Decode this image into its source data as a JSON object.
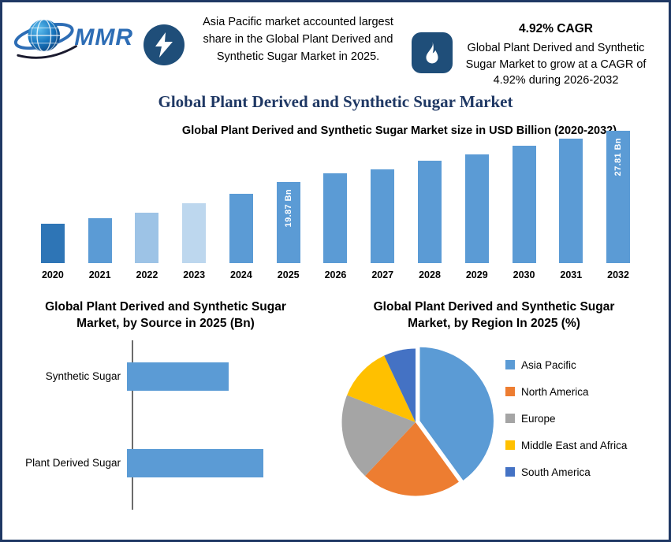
{
  "page": {
    "border_color": "#1f3864",
    "background": "#ffffff"
  },
  "header": {
    "logo": {
      "text": "MMR"
    },
    "highlight_left": {
      "icon": "lightning-icon",
      "text": "Asia Pacific market accounted largest share in the Global Plant Derived and Synthetic Sugar Market in 2025."
    },
    "highlight_right": {
      "icon": "flame-icon",
      "heading": "4.92% CAGR",
      "text": "Global Plant Derived and Synthetic Sugar Market to grow at a CAGR of 4.92% during 2026-2032"
    },
    "title": "Global Plant Derived and Synthetic Sugar Market"
  },
  "chart_data": [
    {
      "id": "market-size-bar",
      "type": "bar",
      "title": "Global Plant Derived and Synthetic Sugar Market size in USD Billion (2020-2032)",
      "unit": "USD Billion",
      "categories": [
        "2020",
        "2021",
        "2022",
        "2023",
        "2024",
        "2025",
        "2026",
        "2027",
        "2028",
        "2029",
        "2030",
        "2031",
        "2032"
      ],
      "bar_heights_rel": [
        50,
        57,
        64,
        76,
        88,
        103,
        114,
        119,
        130,
        138,
        149,
        158,
        168
      ],
      "values_usd_bn_labeled": {
        "2025": 19.87,
        "2032": 27.81
      },
      "value_labels": {
        "2025": "19.87 Bn",
        "2032": "27.81 Bn"
      },
      "bar_colors": [
        "#2e75b6",
        "#5b9bd5",
        "#9dc3e6",
        "#bdd7ee",
        "#5b9bd5",
        "#5b9bd5",
        "#5b9bd5",
        "#5b9bd5",
        "#5b9bd5",
        "#5b9bd5",
        "#5b9bd5",
        "#5b9bd5",
        "#5b9bd5"
      ],
      "grid": false,
      "legend": false
    },
    {
      "id": "by-source-hbar",
      "type": "bar",
      "orientation": "horizontal",
      "title": "Global Plant Derived and Synthetic Sugar Market, by Source in 2025 (Bn)",
      "categories": [
        "Synthetic Sugar",
        "Plant Derived Sugar"
      ],
      "values_bn_est": [
        8.5,
        11.4
      ],
      "bar_color": "#5b9bd5",
      "grid": false,
      "legend": false
    },
    {
      "id": "by-region-pie",
      "type": "pie",
      "title": "Global Plant Derived and Synthetic Sugar Market, by Region In 2025 (%)",
      "slices": [
        {
          "label": "Asia Pacific",
          "value_pct_est": 40,
          "color": "#5b9bd5"
        },
        {
          "label": "North America",
          "value_pct_est": 22,
          "color": "#ed7d31"
        },
        {
          "label": "Europe",
          "value_pct_est": 19,
          "color": "#a5a5a5"
        },
        {
          "label": "Middle East and Africa",
          "value_pct_est": 12,
          "color": "#ffc000"
        },
        {
          "label": "South America",
          "value_pct_est": 7,
          "color": "#4472c4"
        }
      ],
      "start_angle_deg": 0,
      "exploded_slice": "Asia Pacific",
      "legend_position": "right"
    }
  ]
}
